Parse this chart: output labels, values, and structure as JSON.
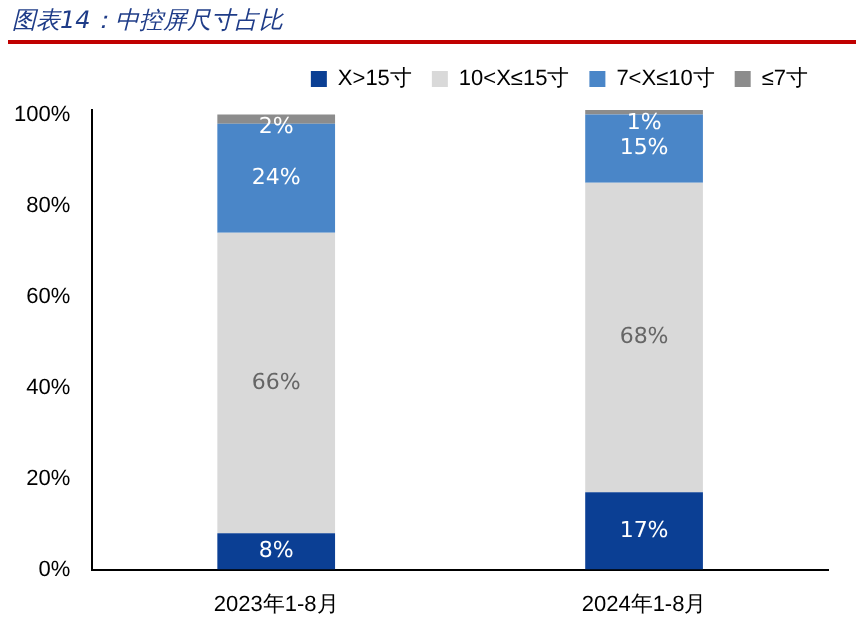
{
  "chart_data": {
    "type": "bar",
    "stacked": true,
    "title": "图表14：中控屏尺寸占比",
    "categories": [
      "2023年1-8月",
      "2024年1-8月"
    ],
    "series": [
      {
        "name": "X>15寸",
        "color": "#0b3f94",
        "values": [
          8,
          17
        ],
        "value_labels": [
          "8%",
          "17%"
        ]
      },
      {
        "name": "10<X≤15寸",
        "color": "#d9d9d9",
        "values": [
          66,
          68
        ],
        "value_labels": [
          "66%",
          "68%"
        ]
      },
      {
        "name": "7<X≤10寸",
        "color": "#4a86c8",
        "values": [
          24,
          15
        ],
        "value_labels": [
          "24%",
          "15%"
        ]
      },
      {
        "name": "≤7寸",
        "color": "#8c8c8c",
        "values": [
          2,
          1
        ],
        "value_labels": [
          "2%",
          "1%"
        ]
      }
    ],
    "ylim": [
      0,
      101
    ],
    "yticks": [
      {
        "value": 0,
        "label": "0%"
      },
      {
        "value": 20,
        "label": "20%"
      },
      {
        "value": 40,
        "label": "40%"
      },
      {
        "value": 60,
        "label": "60%"
      },
      {
        "value": 80,
        "label": "80%"
      },
      {
        "value": 100,
        "label": "100%"
      }
    ],
    "grid": false,
    "legend": "top right"
  }
}
